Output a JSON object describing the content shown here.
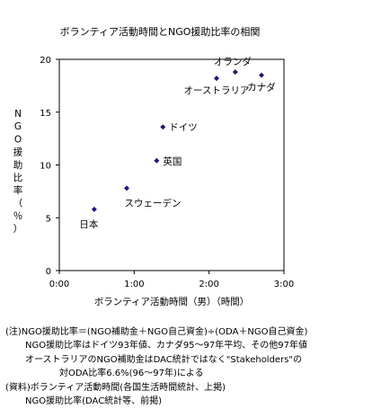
{
  "chart_data": {
    "type": "scatter",
    "title": "ボランティア活動時間とNGO援助比率の相関",
    "xlabel": "ボランティア活動時間（男）（時間）",
    "ylabel_chars": [
      "N",
      "G",
      "O",
      "援",
      "助",
      "比",
      "率",
      "（",
      "％",
      "）"
    ],
    "xlim": [
      0,
      180
    ],
    "ylim": [
      0,
      20
    ],
    "x_ticks": [
      {
        "value": 0,
        "label": "0:00"
      },
      {
        "value": 60,
        "label": "1:00"
      },
      {
        "value": 120,
        "label": "2:00"
      },
      {
        "value": 180,
        "label": "3:00"
      }
    ],
    "y_ticks": [
      {
        "value": 0,
        "label": "0"
      },
      {
        "value": 5,
        "label": "5"
      },
      {
        "value": 10,
        "label": "10"
      },
      {
        "value": 15,
        "label": "15"
      },
      {
        "value": 20,
        "label": "20"
      }
    ],
    "grid": false,
    "marker_color": "#1a1a7a",
    "points": [
      {
        "label": "日本",
        "x": 28,
        "y": 5.8,
        "label_pos": "below-left"
      },
      {
        "label": "スウェーデン",
        "x": 54,
        "y": 7.8,
        "label_pos": "below-right"
      },
      {
        "label": "英国",
        "x": 78,
        "y": 10.4,
        "label_pos": "right"
      },
      {
        "label": "ドイツ",
        "x": 83,
        "y": 13.6,
        "label_pos": "right"
      },
      {
        "label": "オーストラリア",
        "x": 126,
        "y": 18.2,
        "label_pos": "below"
      },
      {
        "label": "オランダ",
        "x": 141,
        "y": 18.8,
        "label_pos": "above"
      },
      {
        "label": "カナダ",
        "x": 162,
        "y": 18.5,
        "label_pos": "below"
      }
    ]
  },
  "notes": [
    "(注)NGO援助比率＝(NGO補助金＋NGO自己資金)÷(ODA＋NGO自己資金)",
    "NGO援助比率はドイツ93年値、カナダ95～97年平均、その他97年値",
    "オーストラリアのNGO補助金はDAC統計ではなく\"Stakeholders\"の",
    "対ODA比率6.6%(96～97年)による",
    "(資料)ボランティア活動時間(各国生活時間統計、上掲)",
    "NGO援助比率(DAC統計等、前掲)"
  ]
}
